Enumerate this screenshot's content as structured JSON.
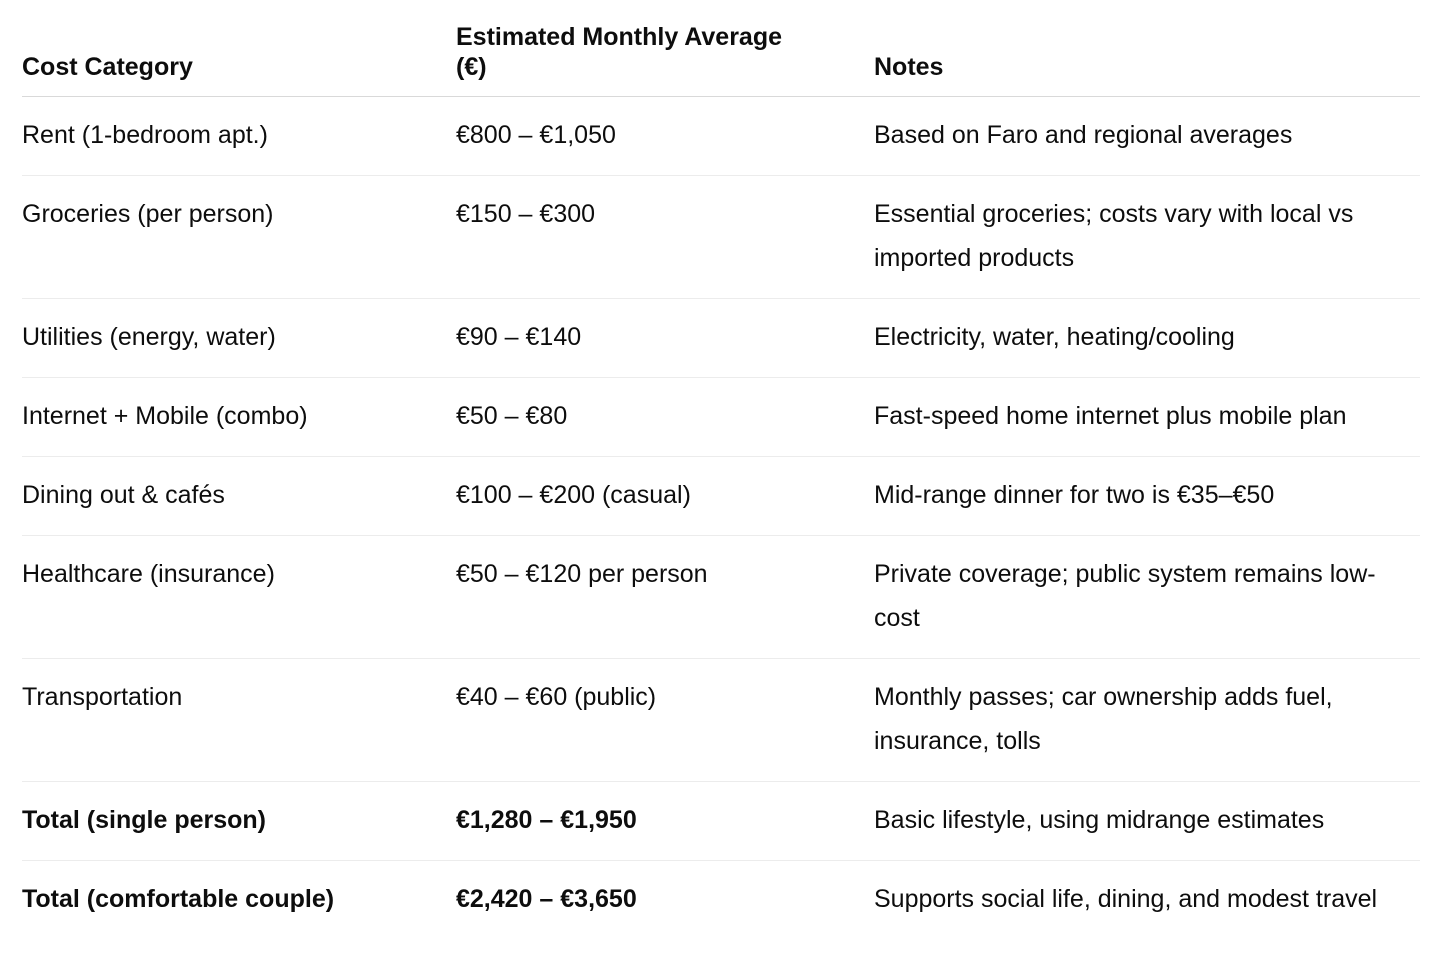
{
  "table": {
    "headers": {
      "category": "Cost Category",
      "average": "Estimated Monthly Average (€)",
      "notes": "Notes"
    },
    "rows": [
      {
        "category": "Rent (1-bedroom apt.)",
        "average": "€800 – €1,050",
        "notes": "Based on Faro and regional averages"
      },
      {
        "category": "Groceries (per person)",
        "average": "€150 – €300",
        "notes": "Essential groceries; costs vary with local vs imported products"
      },
      {
        "category": "Utilities (energy, water)",
        "average": "€90 – €140",
        "notes": "Electricity, water, heating/cooling"
      },
      {
        "category": "Internet + Mobile (combo)",
        "average": "€50 – €80",
        "notes": "Fast-speed home internet plus mobile plan"
      },
      {
        "category": "Dining out & cafés",
        "average": "€100 – €200 (casual)",
        "notes": "Mid-range dinner for two is €35–€50"
      },
      {
        "category": "Healthcare (insurance)",
        "average": "€50 – €120 per person",
        "notes": "Private coverage; public system remains low-cost"
      },
      {
        "category": "Transportation",
        "average": "€40 – €60 (public)",
        "notes": "Monthly passes; car ownership adds fuel, insurance, tolls"
      },
      {
        "category": "Total (single person)",
        "average": "€1,280 – €1,950",
        "notes": "Basic lifestyle, using midrange estimates"
      },
      {
        "category": "Total (comfortable couple)",
        "average": "€2,420 – €3,650",
        "notes": "Supports social life, dining, and modest travel"
      }
    ]
  }
}
